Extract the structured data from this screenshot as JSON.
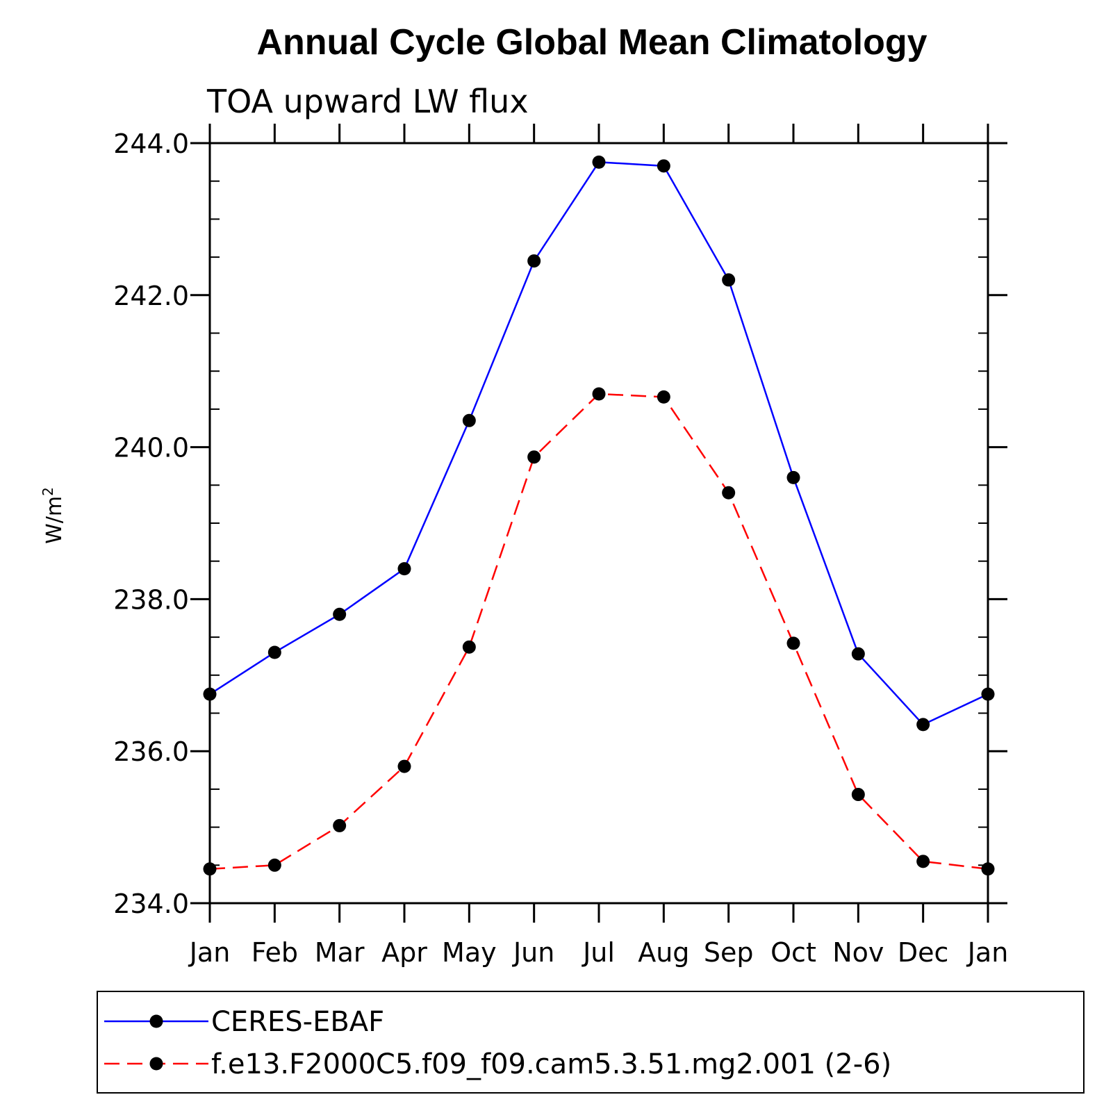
{
  "chart_data": {
    "type": "line",
    "title": "Annual Cycle Global Mean Climatology",
    "subtitle": "TOA upward LW flux",
    "ylabel": "W/m",
    "ylabel_sup": "2",
    "xlabel": "",
    "categories": [
      "Jan",
      "Feb",
      "Mar",
      "Apr",
      "May",
      "Jun",
      "Jul",
      "Aug",
      "Sep",
      "Oct",
      "Nov",
      "Dec",
      "Jan"
    ],
    "ylim": [
      234.0,
      244.0
    ],
    "yticks": [
      "234.0",
      "236.0",
      "238.0",
      "240.0",
      "242.0",
      "244.0"
    ],
    "grid": false,
    "legend_position": "bottom",
    "series": [
      {
        "name": "CERES-EBAF",
        "color": "#0000ff",
        "dash": "solid",
        "values": [
          236.75,
          237.3,
          237.8,
          238.4,
          240.35,
          242.45,
          243.75,
          243.7,
          242.2,
          239.6,
          237.28,
          236.35,
          236.75
        ]
      },
      {
        "name": "f.e13.F2000C5.f09_f09.cam5.3.51.mg2.001 (2-6)",
        "color": "#ff0000",
        "dash": "dashed",
        "values": [
          234.45,
          234.5,
          235.02,
          235.8,
          237.37,
          239.87,
          240.7,
          240.66,
          239.4,
          237.42,
          235.43,
          234.55,
          234.45
        ]
      }
    ]
  }
}
